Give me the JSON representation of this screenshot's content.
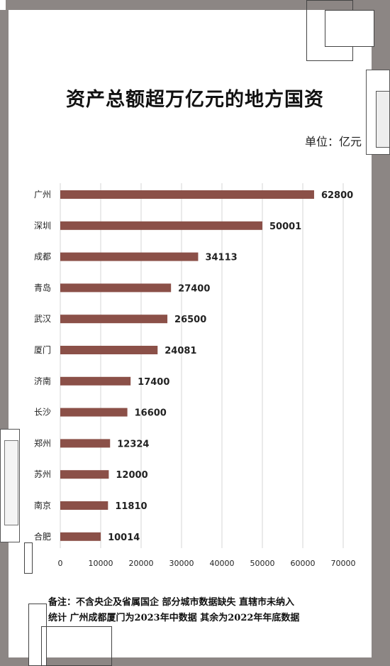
{
  "chart_data": {
    "type": "bar",
    "orientation": "horizontal",
    "title": "资产总额超万亿元的地方国资",
    "unit": "单位：亿元",
    "categories": [
      "广州",
      "深圳",
      "成都",
      "青岛",
      "武汉",
      "厦门",
      "济南",
      "长沙",
      "郑州",
      "苏州",
      "南京",
      "合肥"
    ],
    "values": [
      62800,
      50001,
      34113,
      27400,
      26500,
      24081,
      17400,
      16600,
      12324,
      12000,
      11810,
      10014
    ],
    "xlim": [
      0,
      70000
    ],
    "xticks": [
      0,
      10000,
      20000,
      30000,
      40000,
      50000,
      60000,
      70000
    ],
    "grid": true,
    "bar_color": "#8b5048"
  },
  "footnote": {
    "line1": "备注：不含央企及省属国企 部分城市数据缺失 直辖市未纳入",
    "line2": "统计 广州成都厦门为2023年中数据 其余为2022年年底数据"
  }
}
